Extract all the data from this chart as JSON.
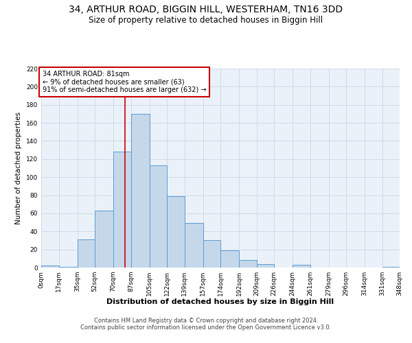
{
  "title": "34, ARTHUR ROAD, BIGGIN HILL, WESTERHAM, TN16 3DD",
  "subtitle": "Size of property relative to detached houses in Biggin Hill",
  "xlabel": "Distribution of detached houses by size in Biggin Hill",
  "ylabel": "Number of detached properties",
  "footer_line1": "Contains HM Land Registry data © Crown copyright and database right 2024.",
  "footer_line2": "Contains public sector information licensed under the Open Government Licence v3.0.",
  "annotation_line1": "34 ARTHUR ROAD: 81sqm",
  "annotation_line2": "← 9% of detached houses are smaller (63)",
  "annotation_line3": "91% of semi-detached houses are larger (632) →",
  "property_size": 81,
  "bar_edges": [
    0,
    17,
    35,
    52,
    70,
    87,
    105,
    122,
    139,
    157,
    174,
    192,
    209,
    226,
    244,
    261,
    279,
    296,
    314,
    331,
    348
  ],
  "bar_values": [
    2,
    1,
    31,
    63,
    128,
    170,
    113,
    79,
    49,
    30,
    19,
    8,
    4,
    0,
    3,
    0,
    0,
    0,
    0,
    1
  ],
  "bar_color": "#c5d8ea",
  "bar_edge_color": "#5b9bd5",
  "vline_color": "#cc0000",
  "annotation_box_color": "#cc0000",
  "grid_color": "#d0dce8",
  "bg_color": "#eaf1f8",
  "ylim": [
    0,
    220
  ],
  "yticks": [
    0,
    20,
    40,
    60,
    80,
    100,
    120,
    140,
    160,
    180,
    200,
    220
  ],
  "title_fontsize": 10,
  "subtitle_fontsize": 8.5,
  "ylabel_fontsize": 7.5,
  "xlabel_fontsize": 8,
  "tick_fontsize": 6.5,
  "footer_fontsize": 6,
  "annotation_fontsize": 7
}
